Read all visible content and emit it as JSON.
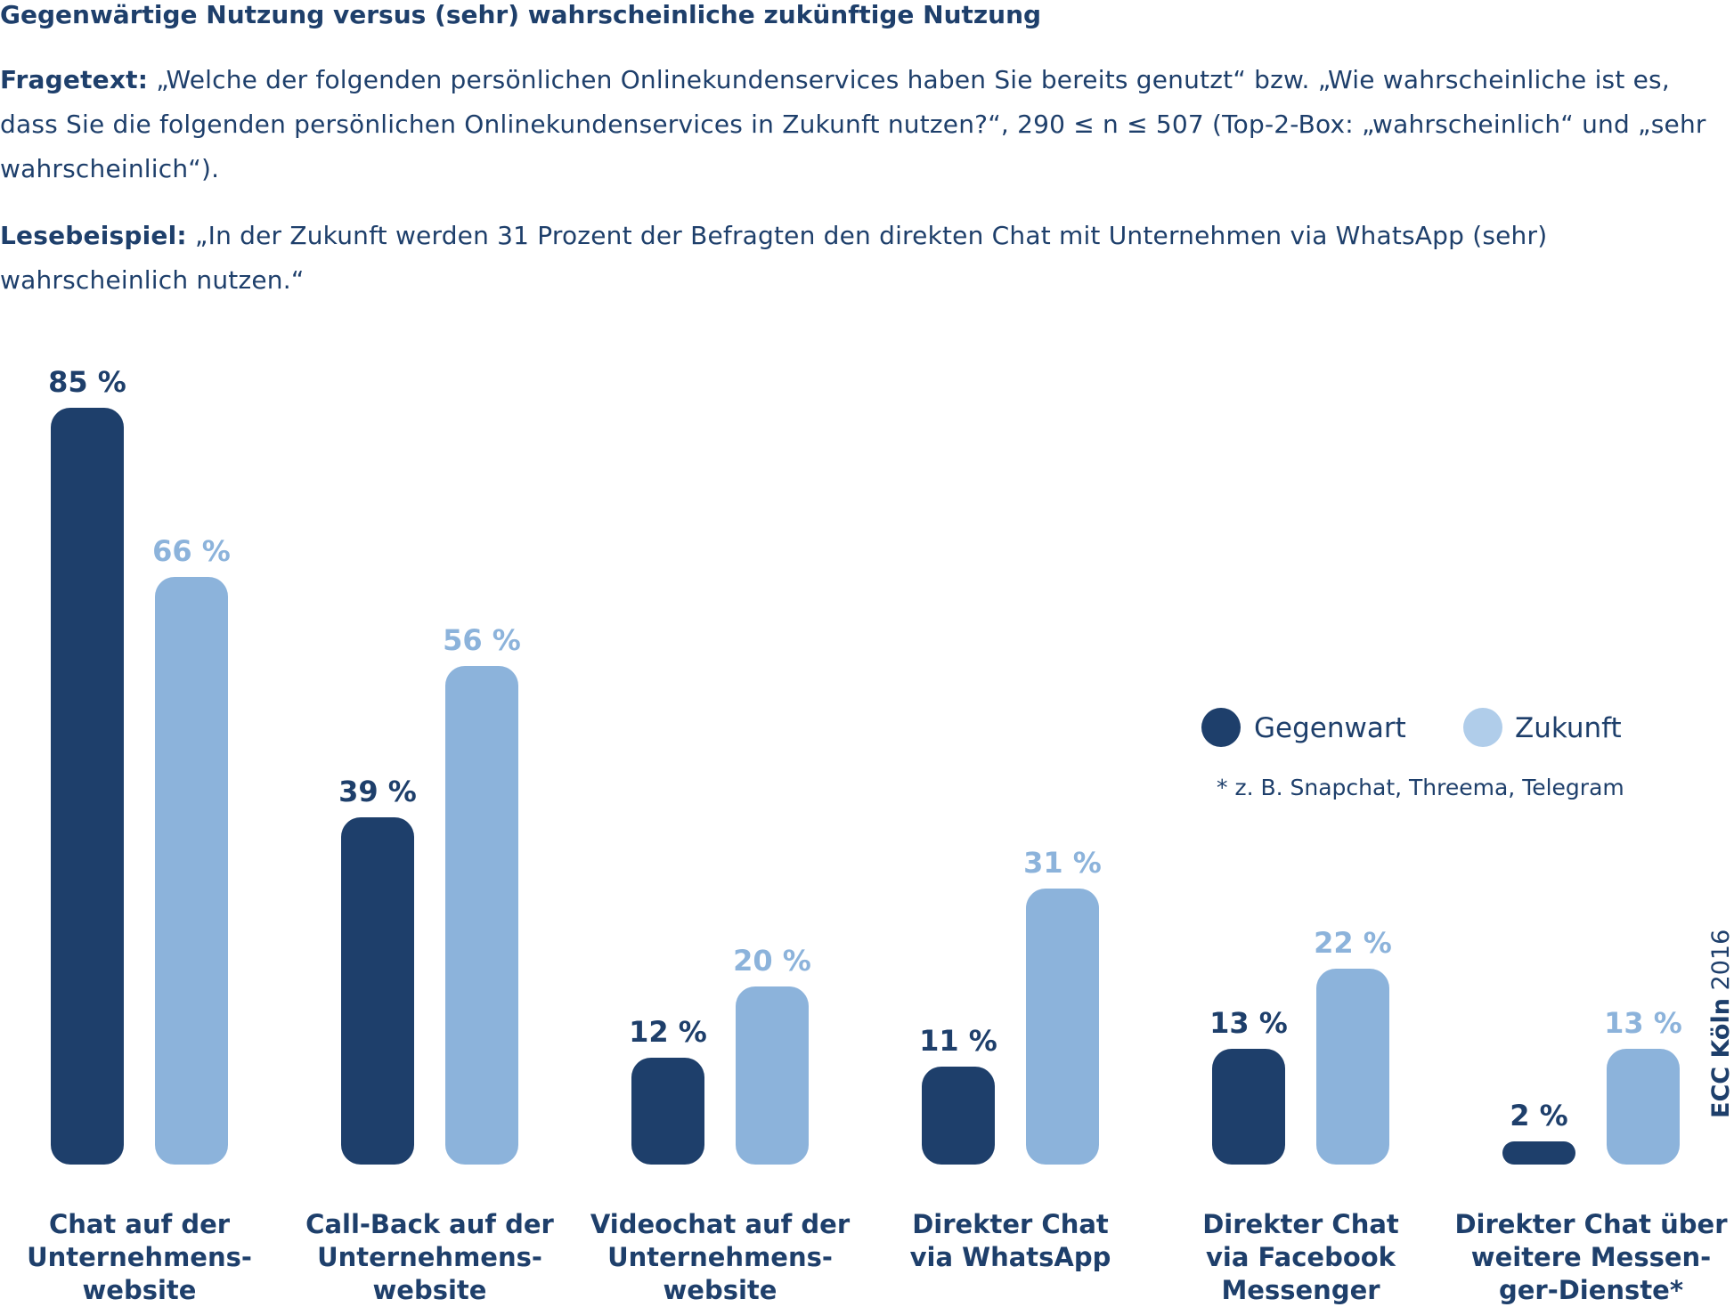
{
  "title": "Gegenwärtige Nutzung versus (sehr) wahrscheinliche zukünftige Nutzung",
  "fragetext": {
    "label": "Fragetext:",
    "text": "„Welche der folgenden persönlichen Onlinekundenservices haben Sie bereits genutzt“ bzw. „Wie wahrscheinliche ist es, dass Sie die folgenden persönlichen Onlinekundenservices in Zukunft nutzen?“, 290 ≤ n ≤ 507 (Top-2-Box: „wahrscheinlich“ und „sehr wahrscheinlich“)."
  },
  "lesebeispiel": {
    "label": "Lesebeispiel:",
    "text": "„In der Zukunft werden 31 Prozent der Befragten den direkten Chat mit Unternehmen via WhatsApp (sehr) wahrscheinlich nutzen.“"
  },
  "footnote": "* z. B. Snapchat, Threema, Telegram",
  "source": {
    "bold": "ECC Köln",
    "year": "2016"
  },
  "colors": {
    "gegenwart": "#1e3f6b",
    "zukunft": "#8cb3db",
    "zukunft_legend": "#b0cdea",
    "text": "#1e3f6b"
  },
  "chart_data": {
    "type": "bar",
    "categories": [
      [
        "Chat auf der",
        "Unternehmens-",
        "website"
      ],
      [
        "Call-Back auf der",
        "Unternehmens-",
        "website"
      ],
      [
        "Videochat auf der",
        "Unternehmens-",
        "website"
      ],
      [
        "Direkter Chat",
        "via WhatsApp"
      ],
      [
        "Direkter Chat",
        "via Facebook",
        "Messenger"
      ],
      [
        "Direkter Chat über",
        "weitere Messen-",
        "ger-Dienste*"
      ]
    ],
    "series": [
      {
        "name": "Gegenwart",
        "values": [
          85,
          39,
          12,
          11,
          13,
          2
        ]
      },
      {
        "name": "Zukunft",
        "values": [
          66,
          56,
          20,
          31,
          22,
          13
        ]
      }
    ],
    "unit": "%",
    "ylim": [
      0,
      85
    ],
    "grid": false,
    "legend": "top-right"
  }
}
